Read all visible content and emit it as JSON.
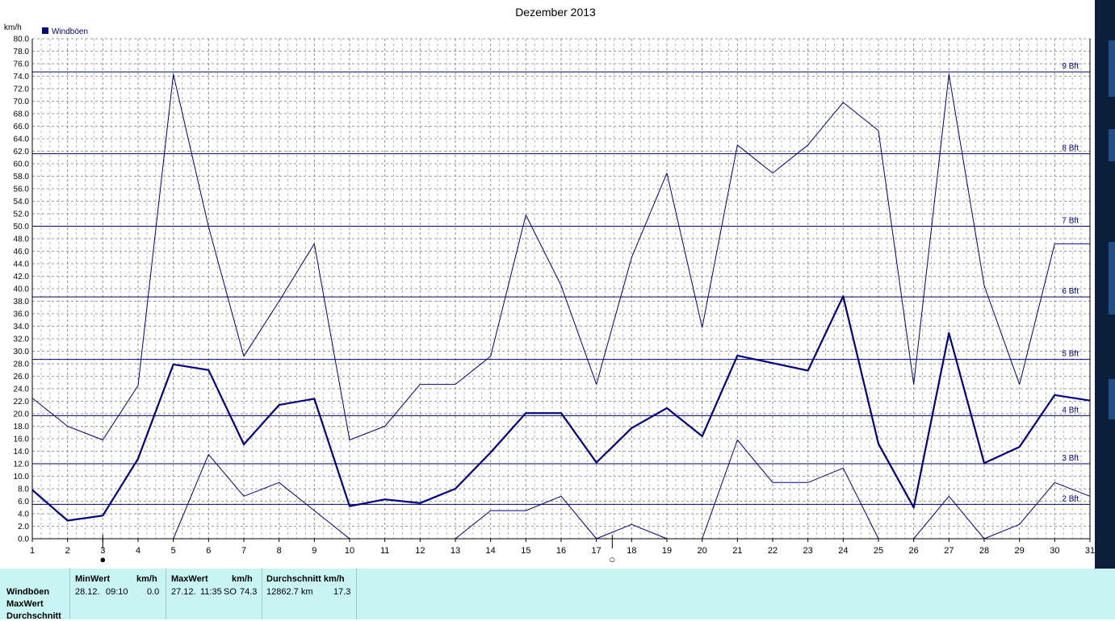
{
  "chart_data": {
    "type": "line",
    "title": "Dezember 2013",
    "ylabel": "km/h",
    "ylim": [
      0,
      80
    ],
    "y_ticks": [
      "0.0",
      "2.0",
      "4.0",
      "6.0",
      "8.0",
      "10.0",
      "12.0",
      "14.0",
      "16.0",
      "18.0",
      "20.0",
      "22.0",
      "24.0",
      "26.0",
      "28.0",
      "30.0",
      "32.0",
      "34.0",
      "36.0",
      "38.0",
      "40.0",
      "42.0",
      "44.0",
      "46.0",
      "48.0",
      "50.0",
      "52.0",
      "54.0",
      "56.0",
      "58.0",
      "60.0",
      "62.0",
      "64.0",
      "66.0",
      "68.0",
      "70.0",
      "72.0",
      "74.0",
      "76.0",
      "78.0",
      "80.0"
    ],
    "x": [
      1,
      2,
      3,
      4,
      5,
      6,
      7,
      8,
      9,
      10,
      11,
      12,
      13,
      14,
      15,
      16,
      17,
      18,
      19,
      20,
      21,
      22,
      23,
      24,
      25,
      26,
      27,
      28,
      29,
      30,
      31
    ],
    "x_ticks": [
      "1",
      "2",
      "3",
      "4",
      "5",
      "6",
      "7",
      "8",
      "9",
      "10",
      "11",
      "12",
      "13",
      "14",
      "15",
      "16",
      "17",
      "18",
      "19",
      "20",
      "21",
      "22",
      "23",
      "24",
      "25",
      "26",
      "27",
      "28",
      "29",
      "30",
      "31"
    ],
    "legend": {
      "label": "Windböen",
      "placement": "top-left",
      "color": "#000080"
    },
    "grid": true,
    "series": [
      {
        "role": "max",
        "color": "#000080",
        "values": [
          22.5,
          18.0,
          15.8,
          24.5,
          74.3,
          49.9,
          29.2,
          38.0,
          47.2,
          15.8,
          18.0,
          24.7,
          24.7,
          29.2,
          51.8,
          40.5,
          24.7,
          45.0,
          58.5,
          33.8,
          63.0,
          58.5,
          63.0,
          69.8,
          65.3,
          24.7,
          74.3,
          40.5,
          24.7,
          47.2,
          47.2
        ]
      },
      {
        "role": "avg",
        "color": "#000080",
        "values": [
          7.8,
          2.9,
          3.7,
          12.8,
          27.9,
          27.0,
          15.1,
          21.4,
          22.4,
          5.2,
          6.3,
          5.7,
          8.0,
          13.8,
          20.1,
          20.1,
          12.2,
          17.7,
          20.9,
          16.4,
          29.3,
          28.1,
          26.9,
          38.8,
          15.2,
          5.0,
          32.9,
          12.1,
          14.7,
          23.0,
          22.1
        ]
      },
      {
        "role": "min",
        "color": "#000080",
        "values": [
          8.0,
          null,
          null,
          null,
          0.0,
          13.5,
          6.8,
          9.0,
          4.5,
          0.0,
          null,
          null,
          0.0,
          4.5,
          4.5,
          6.8,
          0.0,
          2.3,
          0.0,
          0.0,
          15.8,
          9.0,
          9.0,
          11.3,
          0.0,
          0.0,
          6.8,
          0.0,
          2.3,
          9.0,
          6.8
        ]
      }
    ],
    "reference_lines": [
      {
        "value": 5.5,
        "label": "2 Bft"
      },
      {
        "value": 12.0,
        "label": "3 Bft"
      },
      {
        "value": 19.7,
        "label": "4 Bft"
      },
      {
        "value": 28.7,
        "label": "5 Bft"
      },
      {
        "value": 38.7,
        "label": "6 Bft"
      },
      {
        "value": 50.0,
        "label": "7 Bft"
      },
      {
        "value": 61.6,
        "label": "8 Bft"
      },
      {
        "value": 74.7,
        "label": "9 Bft"
      }
    ],
    "moon_phases": [
      {
        "day": 3,
        "phase": "new",
        "symbol": "●"
      },
      {
        "day": 17.45,
        "phase": "full",
        "symbol": "○"
      }
    ]
  },
  "stats_panel": {
    "row_labels": [
      "Windböen",
      "MaxWert",
      "Durchschnitt"
    ],
    "min": {
      "header": "MinWert",
      "unit": "km/h",
      "date": "28.12.",
      "time": "09:10",
      "value": "0.0"
    },
    "max": {
      "header": "MaxWert",
      "unit": "km/h",
      "date": "27.12.",
      "time": "11:35",
      "dir": "SO",
      "value": "74.3"
    },
    "avg": {
      "header": "Durchschnitt km/h",
      "distance": "12862.7 km",
      "value": "17.3"
    }
  }
}
